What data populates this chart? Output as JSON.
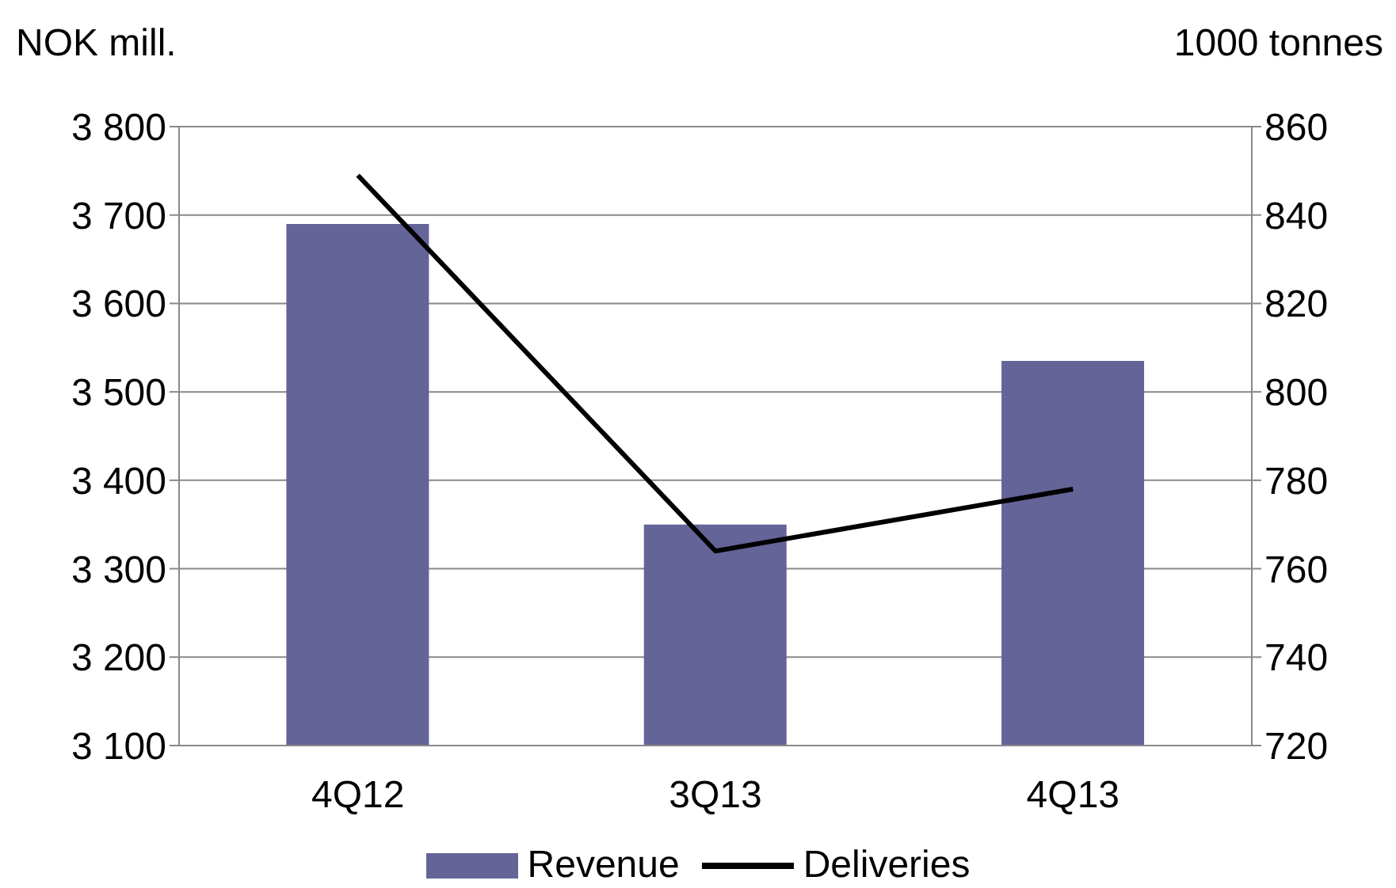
{
  "chart_data": {
    "type": "bar",
    "ylabel": "NOK mill.",
    "y2label": "1000 tonnes",
    "categories": [
      "4Q12",
      "3Q13",
      "4Q13"
    ],
    "series": [
      {
        "name": "Revenue",
        "color": "#646499",
        "values": [
          3690,
          3350,
          3535
        ]
      },
      {
        "name": "Deliveries",
        "type": "line",
        "axis": "y2",
        "color": "#000000",
        "values": [
          849,
          764,
          778
        ]
      }
    ],
    "ylim": [
      3100,
      3800
    ],
    "yticks": [
      {
        "value": 3100,
        "label": "3 100"
      },
      {
        "value": 3200,
        "label": "3 200"
      },
      {
        "value": 3300,
        "label": "3 300"
      },
      {
        "value": 3400,
        "label": "3 400"
      },
      {
        "value": 3500,
        "label": "3 500"
      },
      {
        "value": 3600,
        "label": "3 600"
      },
      {
        "value": 3700,
        "label": "3 700"
      },
      {
        "value": 3800,
        "label": "3 800"
      }
    ],
    "y2lim": [
      720,
      860
    ],
    "y2ticks": [
      720,
      740,
      760,
      780,
      800,
      820,
      840,
      860
    ],
    "grid": "y",
    "legend": "bottom"
  }
}
